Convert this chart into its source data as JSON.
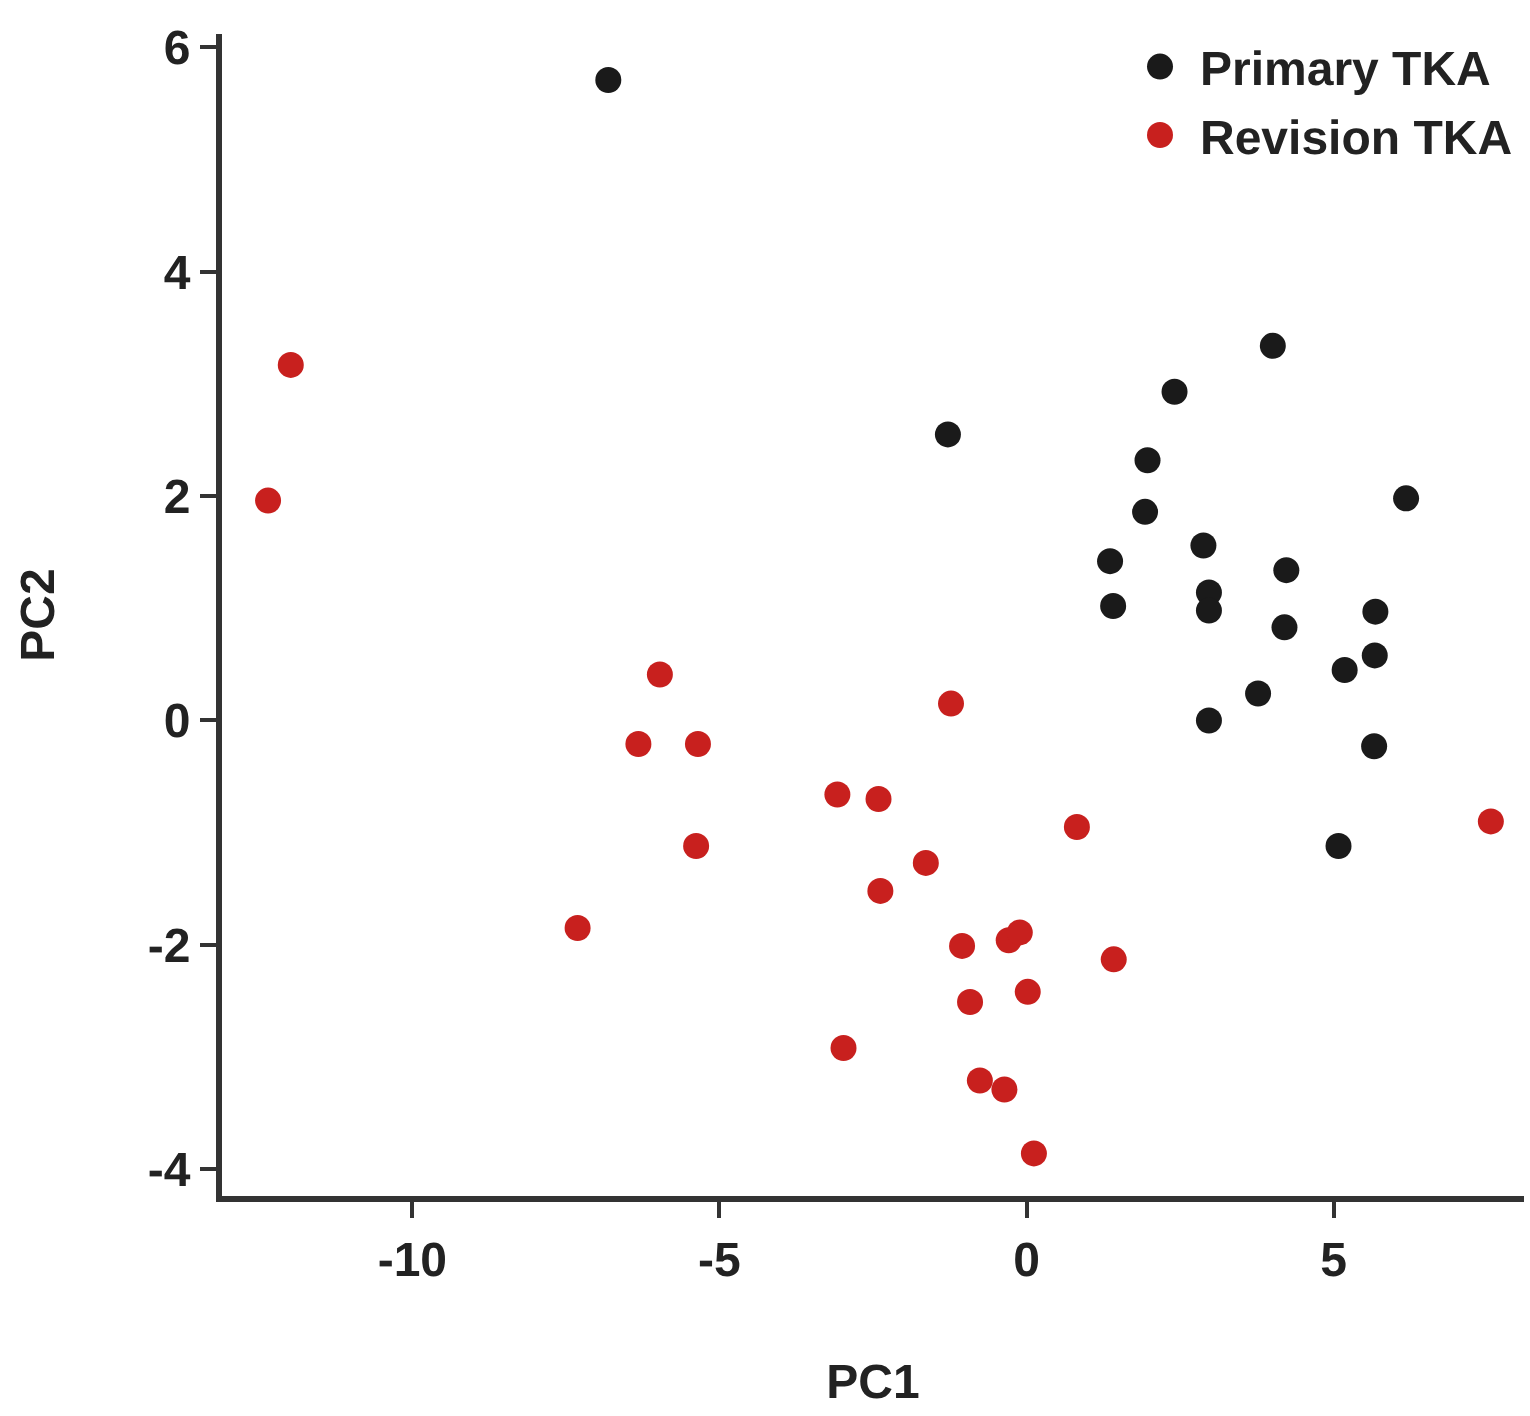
{
  "chart_data": {
    "type": "scatter",
    "xlabel": "PC1",
    "ylabel": "PC2",
    "xlim": [
      -13.1,
      8.1
    ],
    "ylim": [
      -4.24,
      6.12
    ],
    "xticks": [
      -10,
      -5,
      0,
      5
    ],
    "yticks": [
      -4,
      -2,
      0,
      2,
      4,
      6
    ],
    "grid": false,
    "legend": "top right",
    "marker": "circle",
    "series": [
      {
        "name": "Primary TKA",
        "color": "#1a1a1a",
        "x": [
          -6.81,
          -1.28,
          2.41,
          4.01,
          1.97,
          1.93,
          6.18,
          1.36,
          2.88,
          1.41,
          2.97,
          2.97,
          4.23,
          4.2,
          5.68,
          5.67,
          5.18,
          3.77,
          2.97,
          5.66,
          5.08
        ],
        "values": [
          5.71,
          2.55,
          2.93,
          3.34,
          2.32,
          1.86,
          1.98,
          1.42,
          1.56,
          1.02,
          1.14,
          0.98,
          1.34,
          0.83,
          0.97,
          0.58,
          0.45,
          0.24,
          0.0,
          -0.23,
          -1.12
        ]
      },
      {
        "name": "Revision TKA",
        "color": "#c8201e",
        "x": [
          -11.98,
          -12.35,
          -5.97,
          -6.32,
          -5.35,
          -5.38,
          -7.31,
          -1.23,
          -3.08,
          -2.41,
          0.82,
          7.56,
          -1.64,
          -2.38,
          -1.05,
          -0.29,
          -0.11,
          1.42,
          -0.92,
          0.02,
          -2.98,
          -0.76,
          -0.36,
          0.12
        ],
        "values": [
          3.17,
          1.96,
          0.41,
          -0.21,
          -0.21,
          -1.12,
          -1.85,
          0.15,
          -0.66,
          -0.7,
          -0.95,
          -0.9,
          -1.27,
          -1.52,
          -2.01,
          -1.96,
          -1.89,
          -2.13,
          -2.51,
          -2.42,
          -2.92,
          -3.21,
          -3.29,
          -3.86
        ]
      }
    ]
  }
}
